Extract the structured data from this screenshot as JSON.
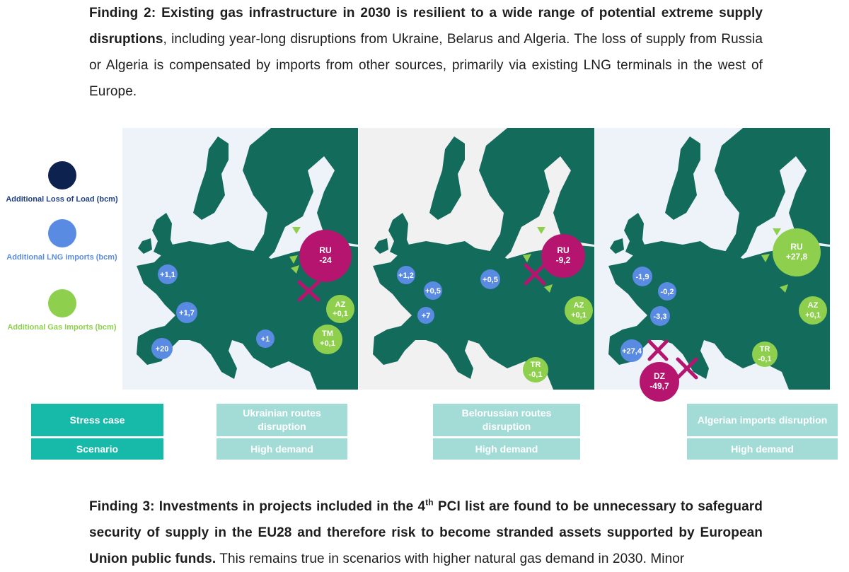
{
  "finding2": {
    "bold": "Finding 2: Existing gas infrastructure in 2030 is resilient to a wide range of potential extreme supply disruptions",
    "rest": ", including year-long disruptions from Ukraine, Belarus and Algeria. The loss of supply from Russia or Algeria is compensated by imports from other sources, primarily via existing LNG terminals in the west of Europe."
  },
  "legend": [
    {
      "label": "Additional Loss of Load (bcm)",
      "color": "#0e2250"
    },
    {
      "label": "Additional LNG imports (bcm)",
      "color": "#5a8be3"
    },
    {
      "label": "Additional Gas Imports (bcm)",
      "color": "#8ed04e"
    }
  ],
  "colors": {
    "land": "#136b5c",
    "loss": "#b5156e",
    "lng": "#5a8be3",
    "gas": "#8ed04e",
    "box_dark": "#17b9a9",
    "box_light": "#a3dcd7"
  },
  "maps": [
    {
      "ru": "RU",
      "ru_val": "-24",
      "lng": [
        "+1,1",
        "+1,7",
        "+20",
        "+1"
      ],
      "gas": [
        {
          "code": "AZ",
          "val": "+0,1"
        },
        {
          "code": "TM",
          "val": "+0,1"
        }
      ]
    },
    {
      "ru": "RU",
      "ru_val": "-9,2",
      "lng": [
        "+1,2",
        "+0,5",
        "+0,5",
        "+7"
      ],
      "gas": [
        {
          "code": "AZ",
          "val": "+0,1"
        },
        {
          "code": "TR",
          "val": "-0,1"
        }
      ]
    },
    {
      "ru": "RU",
      "ru_val": "+27,8",
      "lng": [
        "-1,9",
        "-0,2",
        "-3,3",
        "+27,4"
      ],
      "gas": [
        {
          "code": "AZ",
          "val": "+0,1"
        },
        {
          "code": "TR",
          "val": "-0,1"
        }
      ],
      "dz": "DZ",
      "dz_val": "-49,7"
    }
  ],
  "table": {
    "stress_case": "Stress case",
    "scenario": "Scenario",
    "cases": [
      "Ukrainian routes disruption",
      "Belorussian routes disruption",
      "Algerian imports disruption"
    ],
    "scenarios": [
      "High demand",
      "High demand",
      "High demand"
    ]
  },
  "finding3": {
    "bold_a": "Finding 3: Investments in projects included in the 4",
    "sup": "th",
    "bold_b": " PCI list are found to be unnecessary to safeguard security of supply in the EU28 and therefore risk to become stranded assets supported by European Union public funds.",
    "rest": " This remains true in scenarios with higher natural gas demand in 2030. Minor"
  }
}
